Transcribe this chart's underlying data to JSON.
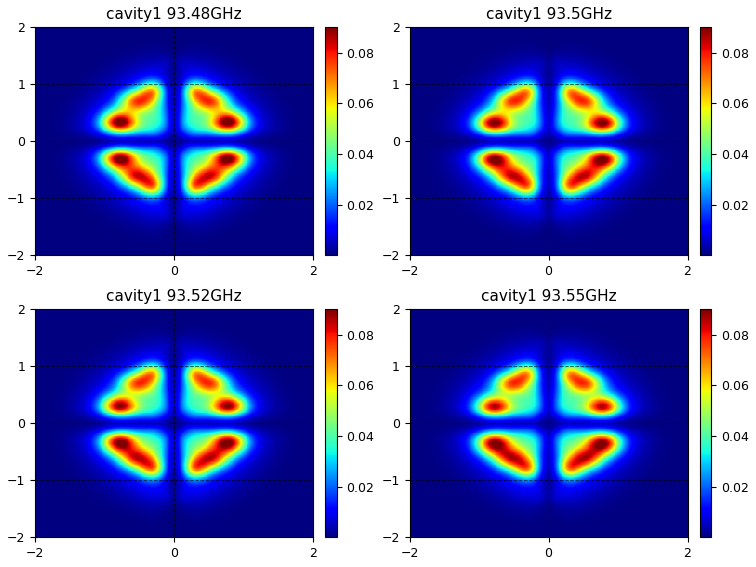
{
  "titles": [
    "cavity1 93.48GHz",
    "cavity1 93.5GHz",
    "cavity1 93.52GHz",
    "cavity1 93.55GHz"
  ],
  "xlim": [
    -2,
    2
  ],
  "ylim": [
    -2,
    2
  ],
  "xticks": [
    -2,
    0,
    2
  ],
  "yticks": [
    -2,
    -1,
    0,
    1,
    2
  ],
  "vmin": 0.0,
  "vmax": 0.09,
  "colorbar_ticks": [
    0.02,
    0.04,
    0.06,
    0.08
  ],
  "cmap": "jet",
  "title_fontsize": 11,
  "tick_fontsize": 9,
  "colorbar_fontsize": 9,
  "grid_color": "black",
  "grid_alpha": 0.6,
  "grid_linestyle": "--",
  "grid_linewidth": 0.7,
  "background_color": "white",
  "figure_size": [
    7.56,
    5.67
  ],
  "dpi": 100
}
